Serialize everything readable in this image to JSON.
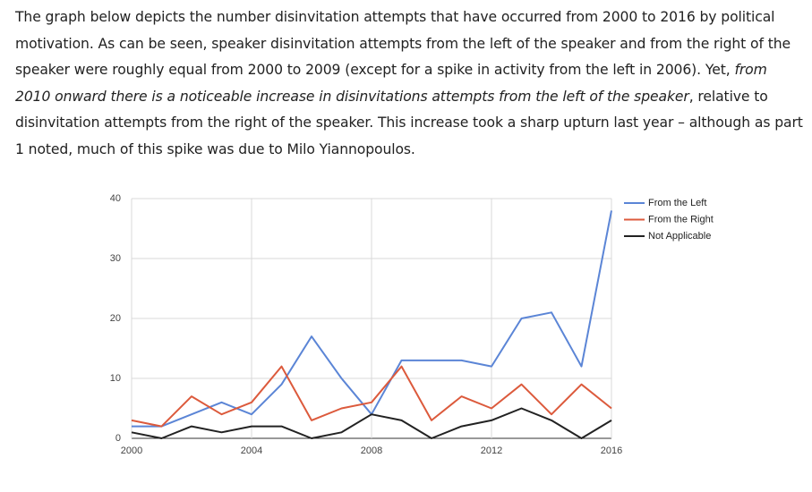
{
  "paragraph": {
    "text_before": "The graph below depicts the number disinvitation attempts that have occurred from 2000 to 2016 by political motivation.  As can be seen, speaker disinvitation attempts from the left of the speaker and from the right of the speaker were roughly equal from 2000 to 2009 (except for a spike in activity from the left in 2006). Yet, ",
    "text_italic": "from 2010 onward there is a noticeable increase in disinvitations attempts from the left of the speaker",
    "text_after": ", relative to disinvitation attempts from the right of the speaker.  This increase took a sharp upturn last year – although as part 1 noted, much of this spike was due to Milo Yiannopoulos."
  },
  "chart_data": {
    "type": "line",
    "x": [
      2000,
      2001,
      2002,
      2003,
      2004,
      2005,
      2006,
      2007,
      2008,
      2009,
      2010,
      2011,
      2012,
      2013,
      2014,
      2015,
      2016
    ],
    "series": [
      {
        "name": "From the Left",
        "color": "#5b85d6",
        "values": [
          2,
          2,
          4,
          6,
          4,
          9,
          17,
          10,
          4,
          13,
          13,
          13,
          12,
          20,
          21,
          12,
          38
        ]
      },
      {
        "name": "From the Right",
        "color": "#dc5a3c",
        "values": [
          3,
          2,
          7,
          4,
          6,
          12,
          3,
          5,
          6,
          12,
          3,
          7,
          5,
          9,
          4,
          9,
          5
        ]
      },
      {
        "name": "Not Applicable",
        "color": "#222222",
        "values": [
          1,
          0,
          2,
          1,
          2,
          2,
          0,
          1,
          4,
          3,
          0,
          2,
          3,
          5,
          3,
          0,
          3
        ]
      }
    ],
    "xlim": [
      2000,
      2016
    ],
    "xticks": [
      2000,
      2004,
      2008,
      2012,
      2016
    ],
    "ylim": [
      0,
      40
    ],
    "yticks": [
      0,
      10,
      20,
      30,
      40
    ],
    "grid": true,
    "legend": "right"
  }
}
